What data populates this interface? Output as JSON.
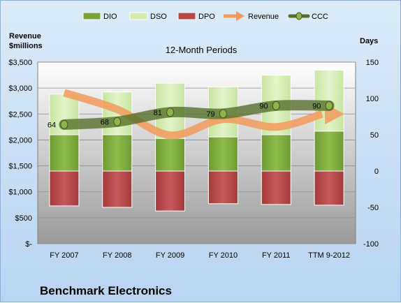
{
  "left_axis_title": "Revenue $millions",
  "right_axis_title": "Days",
  "subtitle": "12-Month Periods",
  "company": "Benchmark Electronics",
  "colors": {
    "dio": "#77a33a",
    "dso": "#d3ecae",
    "dpo": "#b84848",
    "revenue": "#f29a5c",
    "ccc": "#55712a",
    "plot_bg_top": "#ffffff",
    "plot_bg_bottom": "#9a9a9a"
  },
  "chart_data": {
    "type": "bar",
    "subtitle": "12-Month Periods",
    "categories": [
      "FY 2007",
      "FY 2008",
      "FY 2009",
      "FY 2010",
      "FY 2011",
      "TTM 9-2012"
    ],
    "left_axis": {
      "label": "Revenue $millions",
      "range": [
        0,
        3500
      ],
      "ticks": [
        "$-",
        "$500",
        "$1,000",
        "$1,500",
        "$2,000",
        "$2,500",
        "$3,000",
        "$3,500"
      ]
    },
    "right_axis": {
      "label": "Days",
      "range": [
        -100,
        150
      ],
      "ticks": [
        "-100",
        "-50",
        "0",
        "50",
        "100",
        "150"
      ]
    },
    "legend": {
      "position": "top",
      "items": [
        {
          "key": "dio",
          "label": "DIO",
          "kind": "bar",
          "color": "#77a33a"
        },
        {
          "key": "dso",
          "label": "DSO",
          "kind": "bar",
          "color": "#d3ecae"
        },
        {
          "key": "dpo",
          "label": "DPO",
          "kind": "bar",
          "color": "#b84848"
        },
        {
          "key": "revenue",
          "label": "Revenue",
          "kind": "arrow",
          "color": "#f29a5c"
        },
        {
          "key": "ccc",
          "label": "CCC",
          "kind": "line",
          "color": "#55712a"
        }
      ]
    },
    "series": [
      {
        "name": "DIO",
        "axis": "right",
        "values": [
          50,
          50,
          45,
          47,
          50,
          55
        ]
      },
      {
        "name": "DSO",
        "axis": "right",
        "values": [
          56,
          59,
          76,
          69,
          82,
          84
        ]
      },
      {
        "name": "DPO",
        "axis": "right",
        "values": [
          -48,
          -50,
          -55,
          -45,
          -46,
          -47
        ]
      },
      {
        "name": "Revenue",
        "axis": "left",
        "values": [
          2910,
          2590,
          2090,
          2400,
          2250,
          2500
        ]
      },
      {
        "name": "CCC",
        "axis": "right",
        "values": [
          64,
          68,
          81,
          79,
          90,
          90
        ]
      }
    ],
    "data_labels": {
      "CCC": [
        "64",
        "68",
        "81",
        "79",
        "90",
        "90"
      ]
    },
    "grid": true
  }
}
